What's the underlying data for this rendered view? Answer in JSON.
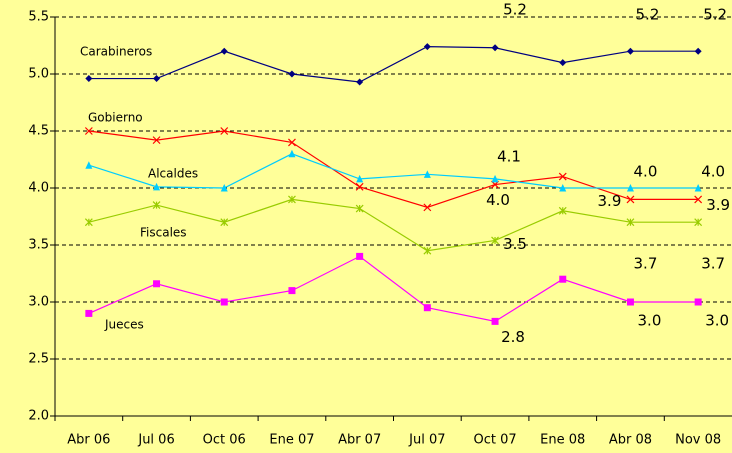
{
  "chart_data": {
    "type": "line",
    "categories": [
      "Abr 06",
      "Jul 06",
      "Oct 06",
      "Ene 07",
      "Abr 07",
      "Jul 07",
      "Oct 07",
      "Ene 08",
      "Abr 08",
      "Nov 08"
    ],
    "ylim": [
      2.0,
      5.5
    ],
    "yticks": [
      {
        "value": 2.0,
        "label": "2.0"
      },
      2.5,
      {
        "value": 3.0,
        "label": "3.0"
      },
      3.5,
      {
        "value": 4.0,
        "label": "4.0"
      },
      4.5,
      {
        "value": 5.0,
        "label": "5.0"
      },
      5.5
    ],
    "grid": true,
    "series": [
      {
        "name": "Carabineros",
        "color": "#000080",
        "marker": "diamond",
        "values": [
          4.96,
          4.96,
          5.2,
          5.0,
          4.93,
          5.24,
          5.23,
          5.1,
          5.2,
          5.2
        ],
        "value_labels": [
          null,
          null,
          null,
          null,
          null,
          null,
          "5.2",
          null,
          "5.2",
          "5.2"
        ]
      },
      {
        "name": "Gobierno",
        "color": "#ff0000",
        "marker": "x",
        "values": [
          4.5,
          4.42,
          4.5,
          4.4,
          4.01,
          3.83,
          4.03,
          4.1,
          3.9,
          3.9
        ],
        "value_labels": [
          null,
          null,
          null,
          null,
          null,
          null,
          "4.0",
          null,
          "3.9",
          "3.9"
        ]
      },
      {
        "name": "Alcaldes",
        "color": "#00ccff",
        "marker": "triangle",
        "values": [
          4.2,
          4.01,
          4.0,
          4.3,
          4.08,
          4.12,
          4.08,
          4.0,
          4.0,
          4.0
        ],
        "value_labels": [
          null,
          null,
          null,
          null,
          null,
          null,
          "4.1",
          null,
          "4.0",
          "4.0"
        ]
      },
      {
        "name": "Fiscales",
        "color": "#99cc00",
        "marker": "star",
        "values": [
          3.7,
          3.85,
          3.7,
          3.9,
          3.82,
          3.45,
          3.54,
          3.8,
          3.7,
          3.7
        ],
        "value_labels": [
          null,
          null,
          null,
          null,
          null,
          null,
          "3.5",
          null,
          "3.7",
          "3.7"
        ]
      },
      {
        "name": "Jueces",
        "color": "#ff00ff",
        "marker": "square",
        "values": [
          2.9,
          3.16,
          3.0,
          3.1,
          3.4,
          2.95,
          2.83,
          3.2,
          3.0,
          3.0
        ],
        "value_labels": [
          null,
          null,
          null,
          null,
          null,
          null,
          "2.8",
          null,
          "3.0",
          "3.0"
        ]
      }
    ]
  }
}
